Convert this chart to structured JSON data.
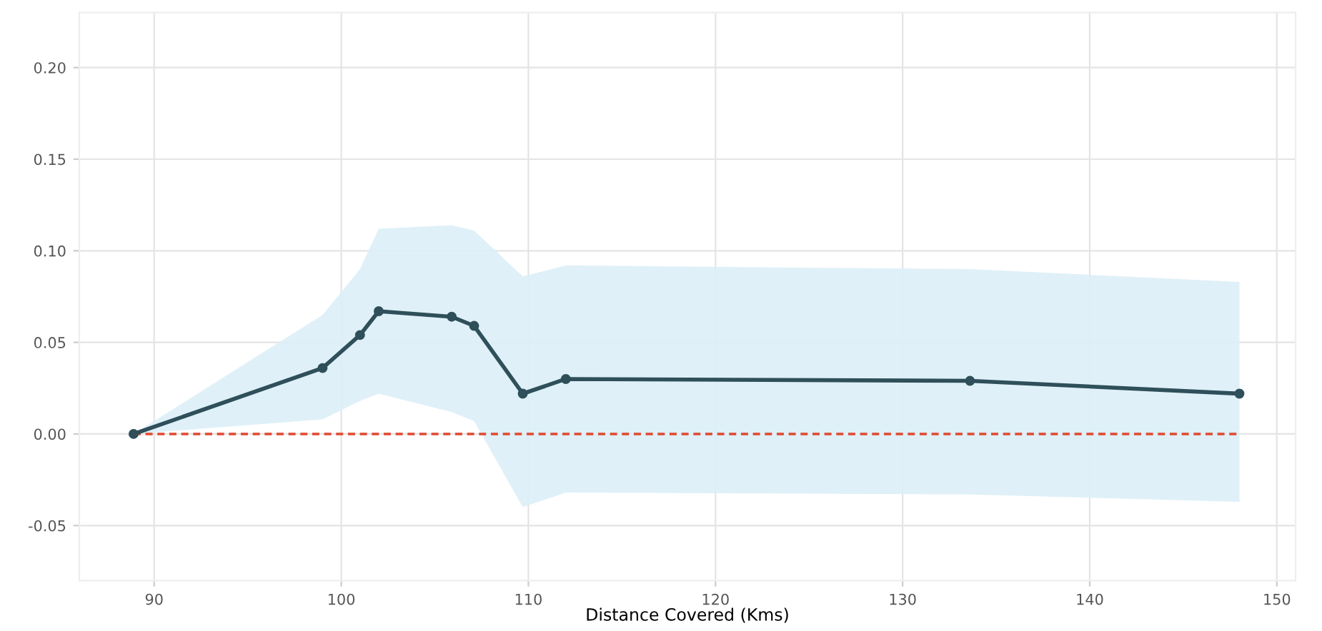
{
  "chart_data": {
    "type": "line",
    "xlabel": "Distance Covered (Kms)",
    "xlim": [
      86,
      151
    ],
    "ylim": [
      -0.08,
      0.23
    ],
    "xticks": [
      90,
      100,
      110,
      120,
      130,
      140,
      150
    ],
    "yticks": [
      {
        "value": -0.05,
        "label": "-0.05"
      },
      {
        "value": 0,
        "label": "0.00"
      },
      {
        "value": 0.05,
        "label": "0.05"
      },
      {
        "value": 0.1,
        "label": "0.10"
      },
      {
        "value": 0.15,
        "label": "0.15"
      },
      {
        "value": 0.2,
        "label": "0.20"
      }
    ],
    "grid": true,
    "marker": "circle",
    "line_style": "solid",
    "series": [
      {
        "color": "#2f4f5a",
        "x": [
          88.9,
          99.0,
          101.0,
          102.0,
          105.9,
          107.1,
          109.7,
          112.0,
          133.6,
          148.0
        ],
        "values": [
          0.0,
          0.036,
          0.054,
          0.067,
          0.064,
          0.059,
          0.022,
          0.03,
          0.029,
          0.022
        ],
        "lower": [
          0.0,
          0.008,
          0.018,
          0.022,
          0.012,
          0.007,
          -0.04,
          -0.032,
          -0.033,
          -0.037
        ],
        "upper": [
          0.0,
          0.065,
          0.09,
          0.112,
          0.114,
          0.111,
          0.086,
          0.092,
          0.09,
          0.083
        ]
      },
      {
        "type": "line",
        "color": "#e0482f",
        "line_style": "dashed",
        "marker": "none",
        "x": [
          88.9,
          148.0
        ],
        "values": [
          0,
          0
        ]
      }
    ]
  }
}
